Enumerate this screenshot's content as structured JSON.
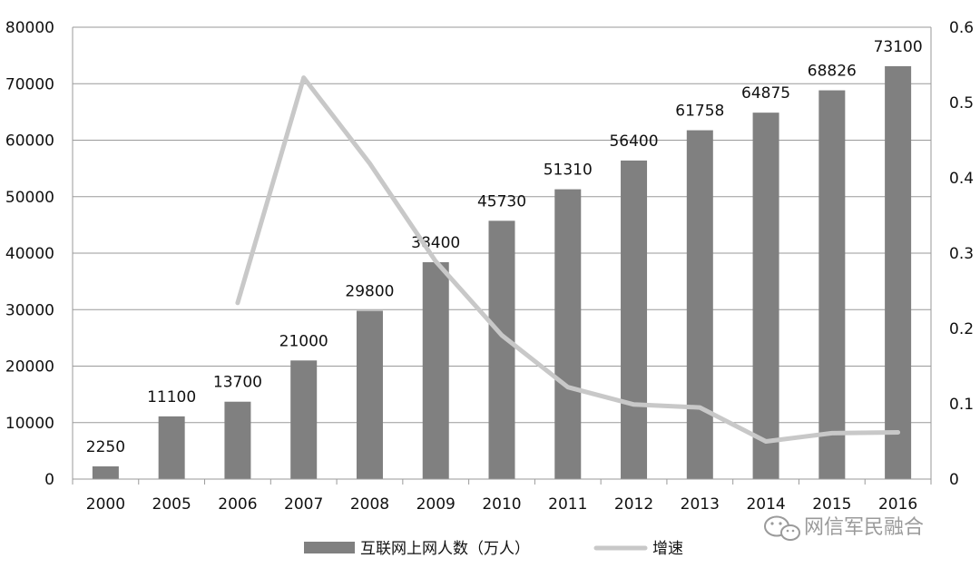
{
  "chart_data": {
    "type": "bar",
    "categories": [
      "2000",
      "2005",
      "2006",
      "2007",
      "2008",
      "2009",
      "2010",
      "2011",
      "2012",
      "2013",
      "2014",
      "2015",
      "2016"
    ],
    "series": [
      {
        "name": "互联网上网人数（万人）",
        "type": "bar",
        "axis": "left",
        "color": "#808080",
        "values": [
          2250,
          11100,
          13700,
          21000,
          29800,
          38400,
          45730,
          51310,
          56400,
          61758,
          64875,
          68826,
          73100
        ],
        "labels": [
          "2250",
          "11100",
          "13700",
          "21000",
          "29800",
          "38400",
          "45730",
          "51310",
          "56400",
          "61758",
          "64875",
          "68826",
          "73100"
        ]
      },
      {
        "name": "增速",
        "type": "line",
        "axis": "right",
        "color": "#c8c8c8",
        "values": [
          null,
          null,
          0.234,
          0.533,
          0.419,
          0.289,
          0.191,
          0.122,
          0.099,
          0.095,
          0.05,
          0.061,
          0.062
        ]
      }
    ],
    "ylim_left": [
      0,
      80000
    ],
    "yticks_left": [
      "0",
      "10000",
      "20000",
      "30000",
      "40000",
      "50000",
      "60000",
      "70000",
      "80000"
    ],
    "ylim_right": [
      0,
      0.6
    ],
    "yticks_right": [
      "0",
      "0.1",
      "0.2",
      "0.3",
      "0.4",
      "0.5",
      "0.6"
    ],
    "grid": true,
    "legend_position": "bottom"
  },
  "watermark": {
    "text": "网信军民融合",
    "icon": "wechat-icon"
  }
}
